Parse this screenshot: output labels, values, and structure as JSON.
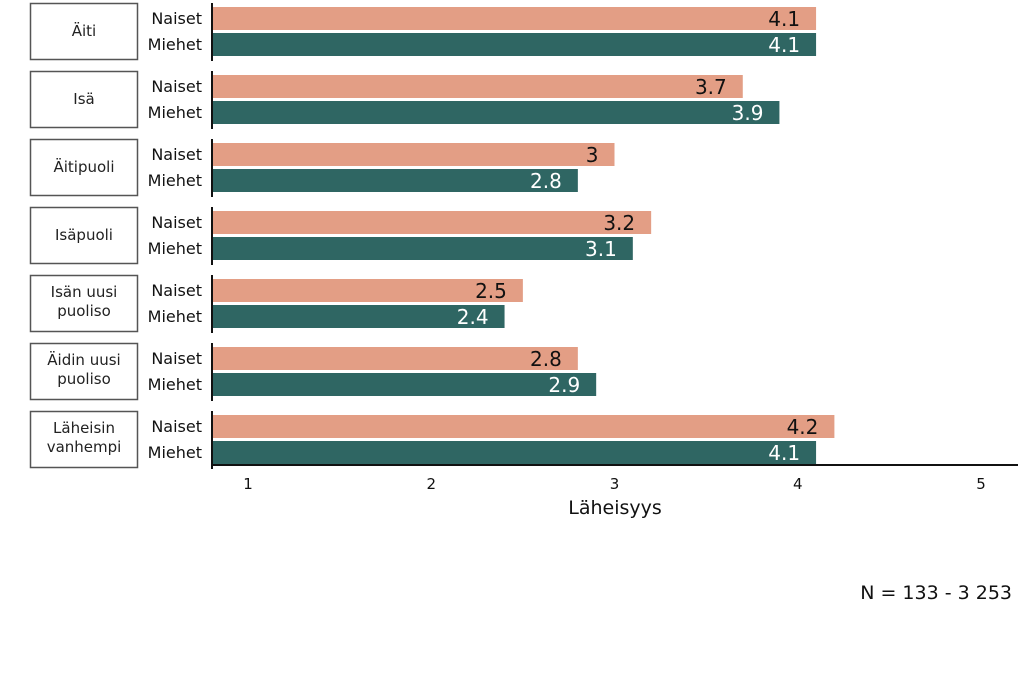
{
  "chart_data": {
    "type": "bar",
    "orientation": "horizontal",
    "categories": [
      "Äiti",
      "Isä",
      "Äitipuoli",
      "Isäpuoli",
      "Isän uusi puoliso",
      "Äidin uusi puoliso",
      "Läheisin vanhempi"
    ],
    "series": [
      {
        "name": "Naiset",
        "color": "#e39e85",
        "label_color": "#111111",
        "values": [
          4.1,
          3.7,
          3,
          3.2,
          2.5,
          2.8,
          4.2
        ]
      },
      {
        "name": "Miehet",
        "color": "#2f6663",
        "label_color": "#ffffff",
        "values": [
          4.1,
          3.9,
          2.8,
          3.1,
          2.4,
          2.9,
          4.1
        ]
      }
    ],
    "xlabel": "Läheisyys",
    "xticks": [
      "1",
      "2",
      "3",
      "4",
      "5"
    ],
    "xlim": [
      0.81,
      5.2
    ],
    "grid": false,
    "legend": "none",
    "annotation": "N = 133 - 3 253"
  }
}
